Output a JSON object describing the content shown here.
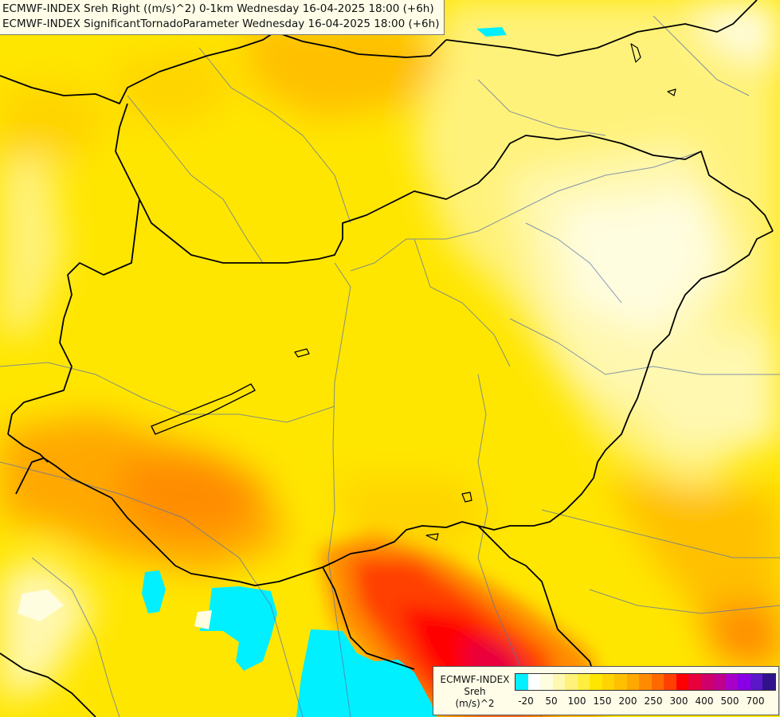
{
  "header": {
    "line1": "ECMWF-INDEX Sreh Right ((m/s)^2) 0-1km Wednesday 16-04-2025 18:00 (+6h)",
    "line2": "ECMWF-INDEX SignificantTornadoParameter Wednesday 16-04-2025 18:00 (+6h)"
  },
  "legend": {
    "title_line1": "ECMWF-INDEX",
    "title_line2": "Sreh",
    "title_line3": "(m/s)^2",
    "colors": [
      "#00f0ff",
      "#ffffff",
      "#fffde0",
      "#fff8b0",
      "#fff27a",
      "#ffee40",
      "#ffe600",
      "#ffd400",
      "#ffc000",
      "#ffa800",
      "#ff8c00",
      "#ff6a00",
      "#ff4000",
      "#ff0000",
      "#e8003c",
      "#d0006a",
      "#c0008c",
      "#a800c8",
      "#8a00e6",
      "#5a18c8",
      "#30128c"
    ],
    "ticks": [
      "-20",
      "50",
      "100",
      "150",
      "200",
      "250",
      "300",
      "400",
      "500",
      "700"
    ]
  },
  "map": {
    "features": [
      "country-borders",
      "rivers",
      "lakes",
      "sreh-shading",
      "tornado-parameter-contours"
    ]
  }
}
